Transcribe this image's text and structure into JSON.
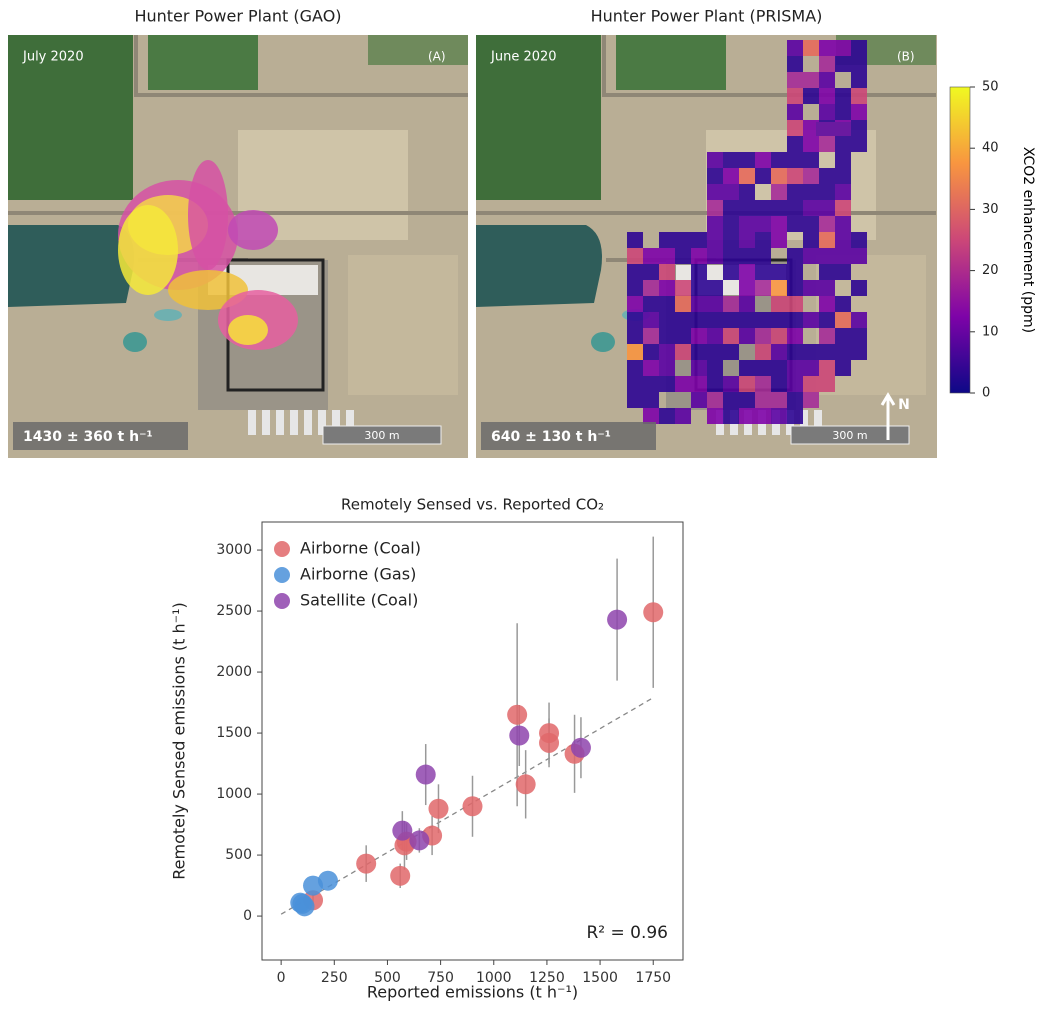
{
  "maps": {
    "panels": [
      {
        "title": "Hunter Power Plant (GAO)",
        "date": "July 2020",
        "letter": "(A)",
        "emission": "1430 ± 360 t h⁻¹",
        "scale": "300 m"
      },
      {
        "title": "Hunter Power Plant (PRISMA)",
        "date": "June 2020",
        "letter": "(B)",
        "emission": "640 ± 130 t h⁻¹",
        "scale": "300 m",
        "north": "N"
      }
    ],
    "colorbar": {
      "label": "XCO2 enhancement (ppm)",
      "clim": [
        0,
        50
      ],
      "ticks": [
        0,
        10,
        20,
        30,
        40,
        50
      ]
    }
  },
  "chart_data": {
    "type": "scatter",
    "title": "Remotely Sensed vs. Reported CO₂",
    "x_label": "Reported emissions (t h⁻¹)",
    "y_label": "Remotely Sensed emissions (t h⁻¹)",
    "annotation": "R² = 0.96",
    "legend": "upper left",
    "xlim": [
      -90,
      1890
    ],
    "ylim": [
      -360,
      3230
    ],
    "xticks": [
      0,
      250,
      500,
      750,
      1000,
      1250,
      1500,
      1750
    ],
    "yticks": [
      0,
      500,
      1000,
      1500,
      2000,
      2500,
      3000
    ],
    "trend_line": {
      "x": [
        0,
        1750
      ],
      "y": [
        15,
        1790
      ],
      "color": "#888888"
    },
    "series": [
      {
        "name": "Airborne (Coal)",
        "color": "#e0676a",
        "x": [
          1750,
          1380,
          1260,
          1260,
          1110,
          1150,
          900,
          740,
          710,
          580,
          560,
          590,
          400,
          150
        ],
        "y": [
          2490,
          1330,
          1500,
          1420,
          1650,
          1080,
          900,
          880,
          660,
          580,
          330,
          610,
          430,
          130
        ],
        "errors": [
          620,
          320,
          250,
          200,
          750,
          280,
          250,
          200,
          160,
          200,
          100,
          150,
          150,
          50
        ]
      },
      {
        "name": "Airborne (Gas)",
        "color": "#4a90d9",
        "x": [
          100,
          90,
          150,
          220,
          110
        ],
        "y": [
          100,
          110,
          250,
          290,
          80
        ]
      },
      {
        "name": "Satellite (Coal)",
        "color": "#8e44ad",
        "x": [
          1580,
          1410,
          1120,
          680,
          570,
          650
        ],
        "y": [
          2430,
          1380,
          1480,
          1160,
          700,
          620
        ],
        "errors": [
          500,
          250,
          250,
          250,
          160,
          100
        ]
      }
    ]
  }
}
